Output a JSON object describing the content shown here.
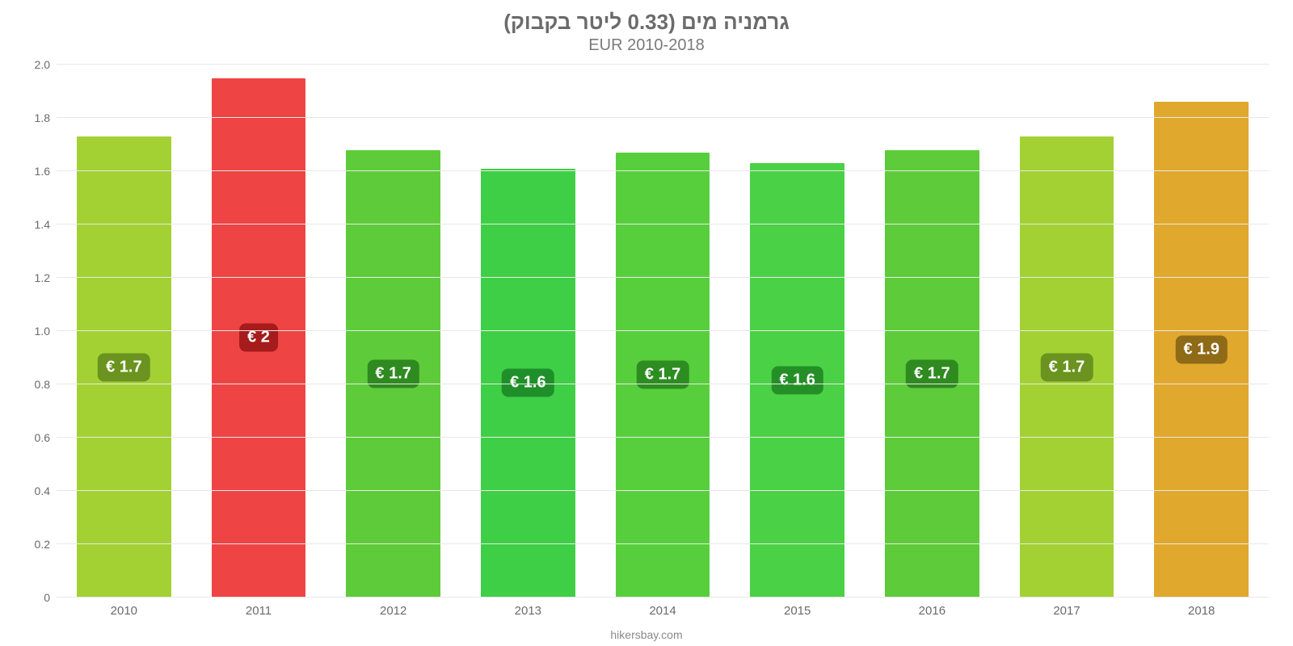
{
  "chart": {
    "type": "bar",
    "title": "גרמניה מים (0.33 ליטר בקבוק)",
    "subtitle": "EUR 2010-2018",
    "title_color": "#6b6b6b",
    "title_fontsize": 26,
    "subtitle_color": "#7a7a7a",
    "subtitle_fontsize": 20,
    "background_color": "#ffffff",
    "plot_background": "#ffffff",
    "grid_color": "#e8e8e8",
    "baseline_color": "#c9c9c9",
    "axis_label_color": "#6b6b6b",
    "ylim": [
      0,
      2.0
    ],
    "yticks": [
      0,
      0.2,
      0.4,
      0.6,
      0.8,
      1.0,
      1.2,
      1.4,
      1.6,
      1.8,
      2.0
    ],
    "ytick_labels": [
      "0",
      "0.2",
      "0.4",
      "0.6",
      "0.8",
      "1.0",
      "1.2",
      "1.4",
      "1.6",
      "1.8",
      "2.0"
    ],
    "ytick_fontsize": 14,
    "categories": [
      "2010",
      "2011",
      "2012",
      "2013",
      "2014",
      "2015",
      "2016",
      "2017",
      "2018"
    ],
    "xtick_color": "#6b6b6b",
    "xtick_fontsize": 15,
    "bar_width_ratio": 0.7,
    "bars": [
      {
        "value": 1.73,
        "label": "€ 1.7",
        "fill": "#a3d133",
        "label_bg": "#6a931f",
        "label_text": "#ffffff"
      },
      {
        "value": 1.95,
        "label": "€ 2",
        "fill": "#ef4444",
        "label_bg": "#a61b1b",
        "label_text": "#ffffff"
      },
      {
        "value": 1.68,
        "label": "€ 1.7",
        "fill": "#5ecb3a",
        "label_bg": "#2f8a20",
        "label_text": "#ffffff"
      },
      {
        "value": 1.61,
        "label": "€ 1.6",
        "fill": "#3fcf46",
        "label_bg": "#1f8f2a",
        "label_text": "#ffffff"
      },
      {
        "value": 1.67,
        "label": "€ 1.7",
        "fill": "#57cf3c",
        "label_bg": "#2d8d21",
        "label_text": "#ffffff"
      },
      {
        "value": 1.63,
        "label": "€ 1.6",
        "fill": "#4bd146",
        "label_bg": "#258f27",
        "label_text": "#ffffff"
      },
      {
        "value": 1.68,
        "label": "€ 1.7",
        "fill": "#5ecb3a",
        "label_bg": "#2f8a20",
        "label_text": "#ffffff"
      },
      {
        "value": 1.73,
        "label": "€ 1.7",
        "fill": "#a3d133",
        "label_bg": "#6a931f",
        "label_text": "#ffffff"
      },
      {
        "value": 1.86,
        "label": "€ 1.9",
        "fill": "#e0a82d",
        "label_bg": "#8f6a17",
        "label_text": "#ffffff"
      }
    ],
    "value_label_fontsize": 20,
    "credit": "hikersbay.com",
    "credit_color": "#8a8a8a"
  }
}
